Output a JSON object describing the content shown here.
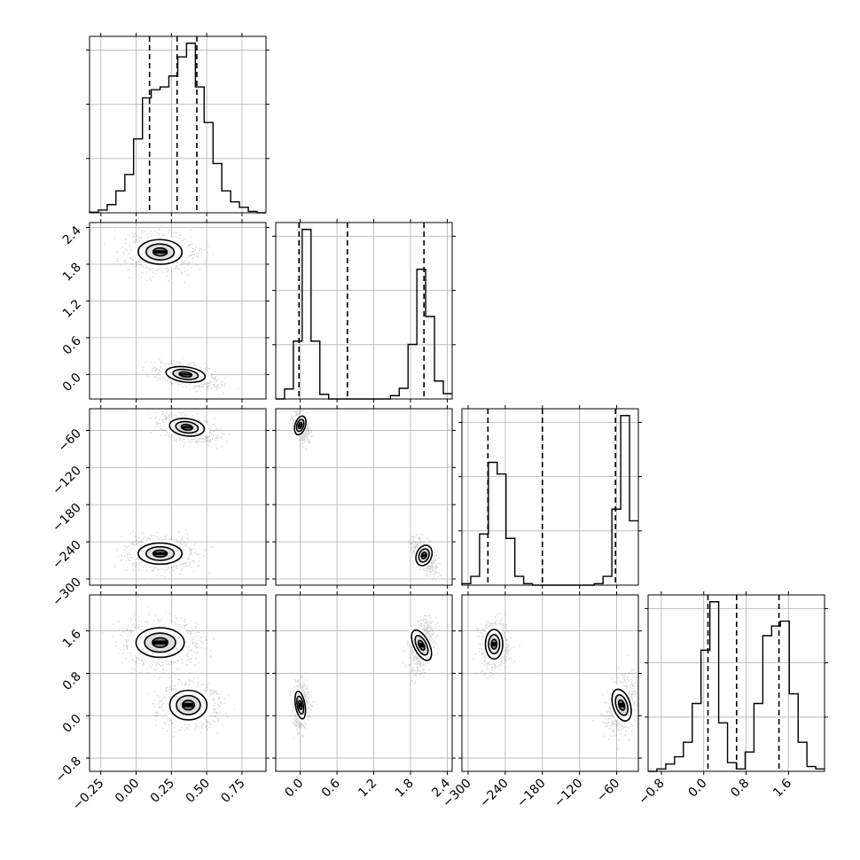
{
  "chart_data": {
    "type": "corner",
    "title": "",
    "grid": true,
    "colors": {
      "line": "#000000",
      "grid": "#b0b0b0",
      "points": "#555555",
      "background": "#ffffff"
    },
    "parameters": [
      {
        "label": "",
        "range": [
          -0.33,
          0.92
        ],
        "ticks": [
          "−0.25",
          "0.00",
          "0.25",
          "0.50",
          "0.75"
        ],
        "tick_values": [
          -0.25,
          0,
          0.25,
          0.5,
          0.75
        ],
        "quantiles": [
          0.095,
          0.29,
          0.43
        ]
      },
      {
        "label": "",
        "range": [
          -0.4,
          2.48
        ],
        "ticks": [
          "0.0",
          "0.6",
          "1.2",
          "1.8",
          "2.4"
        ],
        "tick_values": [
          0,
          0.6,
          1.2,
          1.8,
          2.4
        ],
        "quantiles": [
          -0.02,
          0.77,
          2.02
        ]
      },
      {
        "label": "",
        "range": [
          -310,
          -25
        ],
        "ticks": [
          "−300",
          "−240",
          "−180",
          "−120",
          "−60"
        ],
        "tick_values": [
          -300,
          -240,
          -180,
          -120,
          -60
        ],
        "quantiles": [
          -268,
          -180,
          -62
        ]
      },
      {
        "label": "",
        "range": [
          -1.05,
          2.28
        ],
        "ticks": [
          "−0.8",
          "0.0",
          "0.8",
          "1.6"
        ],
        "tick_values": [
          -0.8,
          0,
          0.8,
          1.6
        ],
        "quantiles": [
          0.08,
          0.62,
          1.42
        ]
      }
    ],
    "histograms": [
      {
        "bin_edges": [
          -0.33,
          -0.268,
          -0.205,
          -0.143,
          -0.08,
          -0.018,
          0.045,
          0.107,
          0.17,
          0.232,
          0.295,
          0.357,
          0.42,
          0.482,
          0.545,
          0.607,
          0.67,
          0.732,
          0.795,
          0.857,
          0.92
        ],
        "counts": [
          0.2,
          1.0,
          3.0,
          8.0,
          14.0,
          27.0,
          42.0,
          45.0,
          46.0,
          50.0,
          57.0,
          62.0,
          46.0,
          33.0,
          18.0,
          8.0,
          4.0,
          2.0,
          0.5,
          0.0
        ]
      },
      {
        "bin_edges": [
          -0.4,
          -0.256,
          -0.112,
          0.032,
          0.176,
          0.32,
          0.464,
          0.608,
          0.752,
          0.896,
          1.04,
          1.184,
          1.328,
          1.472,
          1.616,
          1.76,
          1.904,
          2.048,
          2.192,
          2.336,
          2.48
        ],
        "counts": [
          0,
          1.5,
          8.7,
          25.5,
          8.7,
          0.7,
          0,
          0,
          0,
          0,
          0,
          0,
          0,
          0.5,
          1.6,
          8.2,
          19.5,
          12.4,
          2.7,
          0.8
        ]
      },
      {
        "bin_edges": [
          -310,
          -295.75,
          -281.5,
          -267.25,
          -253,
          -238.75,
          -224.5,
          -210.25,
          -196,
          -181.75,
          -167.5,
          -153.25,
          -139,
          -124.75,
          -110.5,
          -96.25,
          -82,
          -67.75,
          -53.5,
          -39.25,
          -25
        ],
        "counts": [
          0.5,
          3.0,
          17.5,
          42.0,
          38.0,
          16.0,
          3.0,
          0.5,
          0,
          0,
          0,
          0,
          0,
          0,
          0,
          0.5,
          3.0,
          26.0,
          58.0,
          22.0
        ]
      },
      {
        "bin_edges": [
          -1.05,
          -0.884,
          -0.717,
          -0.551,
          -0.384,
          -0.217,
          -0.051,
          0.116,
          0.282,
          0.449,
          0.615,
          0.782,
          0.948,
          1.115,
          1.282,
          1.449,
          1.615,
          1.782,
          1.948,
          2.114,
          2.28
        ],
        "counts": [
          0,
          0.5,
          1.5,
          3.0,
          6.0,
          14.0,
          25.0,
          35.0,
          10.0,
          1.8,
          0.5,
          4.0,
          14.0,
          28.0,
          30.0,
          31.0,
          16.0,
          6.0,
          1.0,
          0.5
        ]
      }
    ],
    "scatter_modes": [
      {
        "pair": [
          1,
          0
        ],
        "clusters": [
          {
            "center": [
              0.17,
              2.0
            ],
            "spread": [
              0.1,
              0.13
            ],
            "rho": -0.05,
            "size": 1100
          },
          {
            "center": [
              0.35,
              0.0
            ],
            "spread": [
              0.09,
              0.08
            ],
            "rho": -0.55,
            "size": 1000
          }
        ]
      },
      {
        "pair": [
          2,
          0
        ],
        "clusters": [
          {
            "center": [
              0.36,
              -55.0
            ],
            "spread": [
              0.08,
              9.0
            ],
            "rho": -0.45,
            "size": 1000
          },
          {
            "center": [
              0.17,
              -259.0
            ],
            "spread": [
              0.1,
              11.0
            ],
            "rho": 0.0,
            "size": 1100
          }
        ]
      },
      {
        "pair": [
          2,
          1
        ],
        "clusters": [
          {
            "center": [
              0.0,
              -52.0
            ],
            "spread": [
              0.055,
              10.0
            ],
            "rho": -0.3,
            "size": 700
          },
          {
            "center": [
              2.02,
              -262.0
            ],
            "spread": [
              0.08,
              11.0
            ],
            "rho": -0.55,
            "size": 800
          }
        ]
      },
      {
        "pair": [
          3,
          0
        ],
        "clusters": [
          {
            "center": [
              0.17,
              1.38
            ],
            "spread": [
              0.11,
              0.18
            ],
            "rho": 0.0,
            "size": 1100
          },
          {
            "center": [
              0.37,
              0.2
            ],
            "spread": [
              0.085,
              0.18
            ],
            "rho": 0.0,
            "size": 1000
          }
        ]
      },
      {
        "pair": [
          3,
          1
        ],
        "clusters": [
          {
            "center": [
              0.0,
              0.2
            ],
            "spread": [
              0.05,
              0.17
            ],
            "rho": 0.1,
            "size": 700
          },
          {
            "center": [
              1.98,
              1.33
            ],
            "spread": [
              0.08,
              0.2
            ],
            "rho": 0.45,
            "size": 800
          }
        ]
      },
      {
        "pair": [
          3,
          2
        ],
        "clusters": [
          {
            "center": [
              -258.0,
              1.35
            ],
            "spread": [
              9.0,
              0.18
            ],
            "rho": 0.0,
            "size": 900
          },
          {
            "center": [
              -52.0,
              0.2
            ],
            "spread": [
              9.0,
              0.2
            ],
            "rho": 0.3,
            "size": 900
          }
        ]
      }
    ]
  }
}
